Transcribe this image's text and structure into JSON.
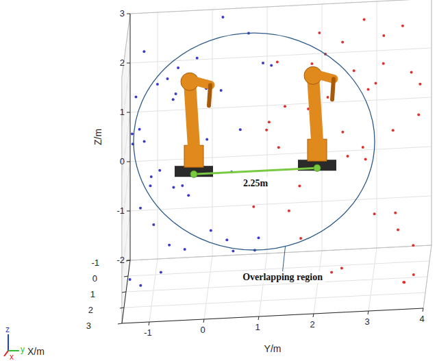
{
  "chart_data": {
    "type": "scatter3d",
    "x_label": "X/m",
    "y_label": "Y/m",
    "z_label": "Z/m",
    "xlim": [
      -1,
      3
    ],
    "ylim": [
      -1.5,
      4
    ],
    "zlim": [
      -2,
      3
    ],
    "xticks": [
      -1,
      0,
      1,
      2,
      3
    ],
    "yticks": [
      -1,
      0,
      1,
      2,
      3,
      4
    ],
    "zticks": [
      -2,
      -1,
      0,
      1,
      2,
      3
    ],
    "grid": true,
    "marker": "circle",
    "series": [
      {
        "color": "#3a3ad0",
        "x": [
          0.2,
          -0.5,
          1.8,
          2.6,
          -0.8,
          0.9,
          1.4,
          2.1,
          -0.2,
          0.5,
          2.8,
          1.1,
          -0.9,
          0.3,
          1.7,
          2.4,
          0.7,
          -0.4,
          1.3,
          2.9,
          0.0,
          1.9,
          -0.7,
          0.6,
          2.2,
          1.5,
          -0.1,
          0.8,
          2.5,
          1.0,
          -0.6,
          1.6,
          2.7,
          0.4,
          -0.3,
          1.2,
          2.0,
          0.1,
          -0.8,
          2.3
        ],
        "y": [
          -1.2,
          -0.8,
          -1.4,
          -0.3,
          0.2,
          -1.0,
          0.6,
          -0.6,
          -1.3,
          0.9,
          -1.1,
          -0.2,
          -0.5,
          0.4,
          -0.9,
          0.1,
          -1.4,
          1.1,
          -0.7,
          -0.4,
          0.7,
          -1.2,
          -0.1,
          -0.9,
          0.5,
          -1.3,
          0.3,
          -0.6,
          -1.0,
          1.0,
          -1.1,
          0.0,
          -0.8,
          -1.4,
          0.8,
          -0.3,
          -1.2,
          0.2,
          -0.7,
          -0.5
        ],
        "z": [
          2.6,
          1.8,
          -1.5,
          0.4,
          2.9,
          -0.7,
          1.3,
          2.2,
          0.9,
          -1.2,
          1.6,
          2.7,
          -1.8,
          0.1,
          2.4,
          -0.4,
          1.1,
          2.0,
          -1.0,
          0.7,
          2.8,
          -1.6,
          1.5,
          0.3,
          -0.9,
          2.1,
          -1.4,
          1.9,
          0.6,
          2.5,
          -0.2,
          1.2,
          -1.1,
          0.8,
          -1.7,
          2.3,
          0.0,
          1.7,
          -0.5,
          2.9
        ]
      },
      {
        "color": "#e03030",
        "x": [
          1.5,
          -0.3,
          2.7,
          0.4,
          1.9,
          -0.8,
          2.2,
          0.9,
          2.9,
          -0.1,
          1.2,
          2.5,
          0.6,
          -0.6,
          1.8,
          2.4,
          0.2,
          1.0,
          2.8,
          -0.4,
          1.6,
          0.7,
          2.1,
          -0.9,
          1.3,
          2.6,
          0.0,
          1.7,
          -0.5,
          2.3,
          0.8,
          1.4,
          -0.2,
          2.0,
          0.3,
          2.7,
          1.1,
          -0.7,
          1.9,
          0.5
        ],
        "y": [
          2.2,
          3.5,
          1.0,
          2.8,
          3.9,
          1.6,
          2.5,
          3.2,
          0.9,
          3.7,
          1.9,
          2.6,
          3.4,
          1.2,
          2.9,
          3.8,
          2.0,
          1.4,
          3.1,
          2.4,
          3.6,
          1.1,
          2.7,
          3.3,
          1.7,
          3.9,
          2.1,
          1.5,
          3.0,
          2.3,
          3.7,
          1.3,
          2.8,
          3.5,
          1.8,
          2.5,
          3.2,
          1.0,
          3.6,
          2.9
        ],
        "z": [
          1.9,
          2.7,
          -1.3,
          0.5,
          2.2,
          -0.6,
          1.4,
          2.9,
          0.2,
          -1.7,
          2.5,
          1.0,
          -0.8,
          2.0,
          0.7,
          -1.5,
          2.8,
          1.6,
          -0.1,
          2.4,
          -1.9,
          1.2,
          2.6,
          0.4,
          -1.0,
          1.8,
          2.3,
          -0.3,
          1.5,
          -1.4,
          2.1,
          0.9,
          2.9,
          -0.7,
          1.3,
          -1.2,
          2.4,
          0.6,
          -1.8,
          1.7
        ]
      }
    ],
    "robots": [
      {
        "x": 0,
        "y": -0.3,
        "z": 0
      },
      {
        "x": 0,
        "y": 1.95,
        "z": 0
      }
    ],
    "robot_distance_label": "2.25m",
    "overlap_region": {
      "label": "Overlapping region",
      "center": {
        "x": 0,
        "y": 0.8,
        "z": 0.6
      },
      "radius": 2.2
    },
    "triad_labels": [
      "z",
      "y",
      "x"
    ]
  }
}
